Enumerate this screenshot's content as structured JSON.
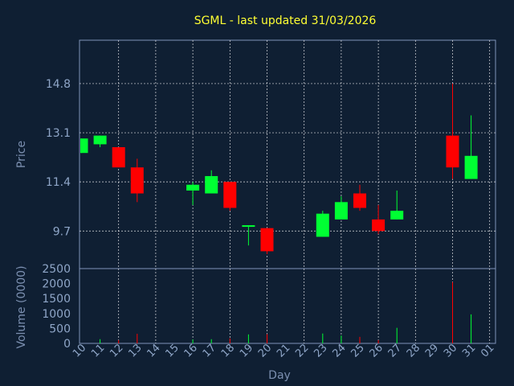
{
  "chart_data": {
    "type": "candlestick",
    "title": "SGML - last updated 31/03/2026",
    "xlabel": "Day",
    "ylabel": "Price",
    "volume_ylabel": "Volume (0000)",
    "x_ticks": [
      "10",
      "11",
      "12",
      "13",
      "14",
      "15",
      "16",
      "17",
      "18",
      "19",
      "20",
      "21",
      "22",
      "23",
      "24",
      "25",
      "26",
      "27",
      "28",
      "29",
      "30",
      "31",
      "01"
    ],
    "price_ticks": [
      "9.7",
      "11.4",
      "13.1",
      "14.8"
    ],
    "volume_ticks": [
      "0",
      "500",
      "1000",
      "1500",
      "2000",
      "2500"
    ],
    "price_range": [
      8.4,
      16.3
    ],
    "volume_range": [
      0,
      2500
    ],
    "grid": true,
    "colors": {
      "up": "#00ff33",
      "down": "#ff0000",
      "background": "#0f1f33",
      "grid": "#ffffff",
      "title": "#ffff33",
      "text": "#8fa6c8"
    },
    "candles": [
      {
        "day": "10",
        "open": 12.4,
        "high": 12.9,
        "low": 12.4,
        "close": 12.9
      },
      {
        "day": "11",
        "open": 12.7,
        "high": 13.0,
        "low": 12.6,
        "close": 13.0
      },
      {
        "day": "12",
        "open": 12.6,
        "high": 12.6,
        "low": 11.9,
        "close": 11.9
      },
      {
        "day": "13",
        "open": 11.9,
        "high": 12.2,
        "low": 10.7,
        "close": 11.0
      },
      {
        "day": "16",
        "open": 11.1,
        "high": 11.4,
        "low": 10.6,
        "close": 11.3
      },
      {
        "day": "17",
        "open": 11.0,
        "high": 11.8,
        "low": 11.0,
        "close": 11.6
      },
      {
        "day": "18",
        "open": 11.4,
        "high": 11.4,
        "low": 10.4,
        "close": 10.5
      },
      {
        "day": "19",
        "open": 9.9,
        "high": 9.9,
        "low": 9.2,
        "close": 9.9
      },
      {
        "day": "20",
        "open": 9.8,
        "high": 9.8,
        "low": 8.9,
        "close": 9.0
      },
      {
        "day": "23",
        "open": 9.5,
        "high": 10.4,
        "low": 9.5,
        "close": 10.3
      },
      {
        "day": "24",
        "open": 10.1,
        "high": 10.9,
        "low": 10.1,
        "close": 10.7
      },
      {
        "day": "25",
        "open": 11.0,
        "high": 11.3,
        "low": 10.4,
        "close": 10.5
      },
      {
        "day": "26",
        "open": 10.1,
        "high": 10.6,
        "low": 9.6,
        "close": 9.7
      },
      {
        "day": "27",
        "open": 10.1,
        "high": 11.1,
        "low": 10.1,
        "close": 10.4
      },
      {
        "day": "30",
        "open": 13.0,
        "high": 14.8,
        "low": 11.5,
        "close": 11.9
      },
      {
        "day": "31",
        "open": 11.5,
        "high": 13.7,
        "low": 11.5,
        "close": 12.3
      }
    ],
    "volume": [
      {
        "day": "11",
        "value": 140,
        "dir": "up"
      },
      {
        "day": "12",
        "value": 110,
        "dir": "down"
      },
      {
        "day": "13",
        "value": 320,
        "dir": "down"
      },
      {
        "day": "16",
        "value": 130,
        "dir": "up"
      },
      {
        "day": "17",
        "value": 140,
        "dir": "up"
      },
      {
        "day": "18",
        "value": 170,
        "dir": "down"
      },
      {
        "day": "19",
        "value": 300,
        "dir": "up"
      },
      {
        "day": "20",
        "value": 310,
        "dir": "down"
      },
      {
        "day": "23",
        "value": 330,
        "dir": "up"
      },
      {
        "day": "24",
        "value": 260,
        "dir": "up"
      },
      {
        "day": "25",
        "value": 220,
        "dir": "down"
      },
      {
        "day": "26",
        "value": 110,
        "dir": "down"
      },
      {
        "day": "27",
        "value": 520,
        "dir": "up"
      },
      {
        "day": "30",
        "value": 2050,
        "dir": "down"
      },
      {
        "day": "31",
        "value": 970,
        "dir": "up"
      }
    ]
  }
}
